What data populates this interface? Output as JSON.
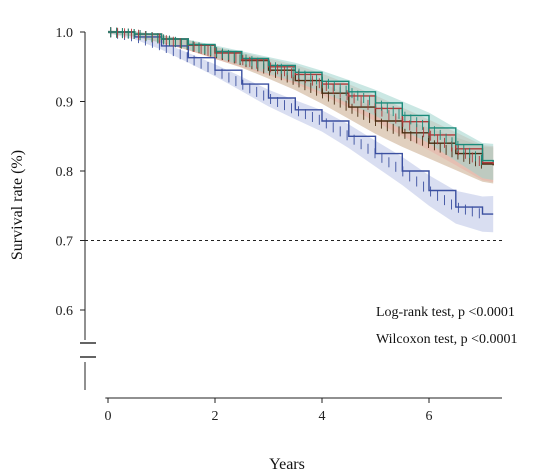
{
  "chart_data": {
    "type": "line",
    "title": "",
    "xlabel": "Years",
    "ylabel": "Survival rate (%)",
    "xlim": [
      -0.5,
      7.4
    ],
    "ylim": [
      0.6,
      1.03
    ],
    "axis_break": true,
    "x_ticks": [
      "0",
      "2",
      "4",
      "6"
    ],
    "x_tick_values": [
      0,
      2,
      4,
      6
    ],
    "y_ticks": [
      "0.6",
      "0.7",
      "0.8",
      "0.9",
      "1.0"
    ],
    "y_tick_values": [
      0.6,
      0.7,
      0.8,
      0.9,
      1.0
    ],
    "reference_line": {
      "y": 0.7,
      "style": "dashed"
    },
    "confidence_bands": true,
    "censor_marks": true,
    "series": [
      {
        "color": "#1a8a7a",
        "band_color": "#9fd4cc",
        "x": [
          0,
          0.5,
          1,
          1.5,
          2,
          2.5,
          3,
          3.5,
          4,
          4.5,
          5,
          5.5,
          6,
          6.5,
          7,
          7.2
        ],
        "values": [
          1.0,
          0.997,
          0.99,
          0.982,
          0.972,
          0.962,
          0.952,
          0.942,
          0.929,
          0.914,
          0.898,
          0.88,
          0.862,
          0.838,
          0.815,
          0.813
        ]
      },
      {
        "color": "#b03a3a",
        "band_color": "#e9b0a8",
        "x": [
          0,
          0.5,
          1,
          1.5,
          2,
          2.5,
          3,
          3.5,
          4,
          4.5,
          5,
          5.5,
          6,
          6.5,
          7,
          7.2
        ],
        "values": [
          1.0,
          0.997,
          0.99,
          0.981,
          0.97,
          0.96,
          0.95,
          0.939,
          0.925,
          0.908,
          0.89,
          0.871,
          0.852,
          0.832,
          0.812,
          0.81
        ]
      },
      {
        "color": "#4a2c10",
        "band_color": "#c9a98a",
        "x": [
          0,
          0.5,
          1,
          1.5,
          2,
          2.5,
          3,
          3.5,
          4,
          4.5,
          5,
          5.5,
          6,
          6.5,
          7,
          7.2
        ],
        "values": [
          1.0,
          0.997,
          0.99,
          0.981,
          0.97,
          0.959,
          0.945,
          0.93,
          0.912,
          0.892,
          0.872,
          0.855,
          0.84,
          0.825,
          0.81,
          0.808
        ]
      },
      {
        "color": "#3a4fa0",
        "band_color": "#b9c2e6",
        "x": [
          0,
          0.5,
          1,
          1.5,
          2,
          2.5,
          3,
          3.5,
          4,
          4.5,
          5,
          5.5,
          6,
          6.5,
          7,
          7.2
        ],
        "values": [
          1.0,
          0.993,
          0.98,
          0.963,
          0.945,
          0.925,
          0.905,
          0.888,
          0.872,
          0.85,
          0.825,
          0.8,
          0.772,
          0.748,
          0.738,
          0.738
        ]
      }
    ],
    "annotations": [
      "Log-rank test, p <0.0001",
      "Wilcoxon test, p <0.0001"
    ]
  }
}
